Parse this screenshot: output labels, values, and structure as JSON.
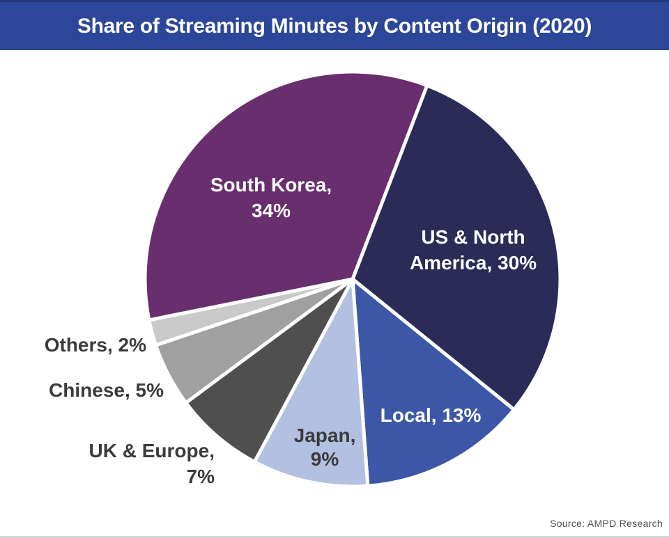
{
  "header": {
    "title": "Share of Streaming Minutes by Content Origin (2020)",
    "bg_color": "#2C4699",
    "top_edge_color": "#24367E",
    "text_color": "#FFFFFF"
  },
  "source": {
    "text": "Source: AMPD Research"
  },
  "chart_data": {
    "type": "pie",
    "title": "Share of Streaming Minutes by Content Origin (2020)",
    "start_angle_deg": 21,
    "direction": "clockwise",
    "separator_color": "#FFFFFF",
    "categories": [
      "US & North America",
      "Local",
      "Japan",
      "UK & Europe",
      "Chinese",
      "Others",
      "South Korea"
    ],
    "values": [
      30,
      13,
      9,
      7,
      5,
      2,
      34
    ],
    "colors": [
      "#2B2B58",
      "#3C57A5",
      "#B2C0E1",
      "#4F4F4F",
      "#A0A0A0",
      "#C9C9C9",
      "#682E6E"
    ],
    "labels": [
      {
        "slice": "US & North America",
        "text": "US & North America, 30%",
        "lines": [
          "US & North",
          "America, 30%"
        ],
        "placement": "inside",
        "color": "#FFFFFF"
      },
      {
        "slice": "Local",
        "text": "Local, 13%",
        "lines": [
          "Local, 13%"
        ],
        "placement": "inside",
        "color": "#FFFFFF"
      },
      {
        "slice": "Japan",
        "text": "Japan, 9%",
        "lines": [
          "Japan,",
          "9%"
        ],
        "placement": "inside",
        "color": "#3B3B3B"
      },
      {
        "slice": "UK & Europe",
        "text": "UK & Europe, 7%",
        "lines": [
          "UK & Europe,",
          "7%"
        ],
        "placement": "outside",
        "color": "#3B3B3B"
      },
      {
        "slice": "Chinese",
        "text": "Chinese, 5%",
        "lines": [
          "Chinese, 5%"
        ],
        "placement": "outside",
        "color": "#3B3B3B"
      },
      {
        "slice": "Others",
        "text": "Others, 2%",
        "lines": [
          "Others, 2%"
        ],
        "placement": "outside",
        "color": "#3B3B3B"
      },
      {
        "slice": "South Korea",
        "text": "South Korea, 34%",
        "lines": [
          "South Korea,",
          "34%"
        ],
        "placement": "inside",
        "color": "#FFFFFF"
      }
    ]
  }
}
